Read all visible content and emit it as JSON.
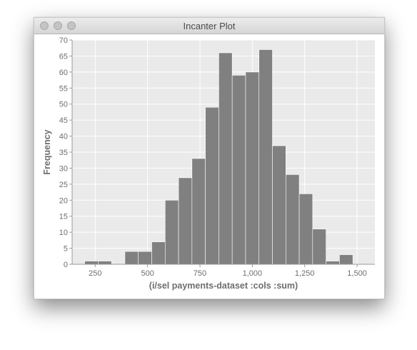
{
  "window": {
    "title": "Incanter Plot",
    "traffic_lights": [
      "close",
      "minimize",
      "zoom"
    ]
  },
  "colors": {
    "plot_background": "#eaeaea",
    "bar_fill": "#808080",
    "grid": "#ffffff",
    "text": "#6e6e6e"
  },
  "chart_data": {
    "type": "bar",
    "title": "",
    "xlabel": "(i/sel payments-dataset :cols :sum)",
    "ylabel": "Frequency",
    "xlim": [
      140,
      1585
    ],
    "ylim": [
      0,
      70
    ],
    "x_ticks": [
      250,
      500,
      750,
      1000,
      1250,
      1500
    ],
    "x_tick_labels": [
      "250",
      "500",
      "750",
      "1,000",
      "1,250",
      "1,500"
    ],
    "y_ticks": [
      0,
      5,
      10,
      15,
      20,
      25,
      30,
      35,
      40,
      45,
      50,
      55,
      60,
      65,
      70
    ],
    "y_tick_labels": [
      "0",
      "5",
      "10",
      "15",
      "20",
      "25",
      "30",
      "35",
      "40",
      "45",
      "50",
      "55",
      "60",
      "65",
      "70"
    ],
    "grid": true,
    "bins": [
      {
        "x0": 200,
        "x1": 264,
        "count": 1
      },
      {
        "x0": 264,
        "x1": 328,
        "count": 1
      },
      {
        "x0": 328,
        "x1": 392,
        "count": 0
      },
      {
        "x0": 392,
        "x1": 456,
        "count": 4
      },
      {
        "x0": 456,
        "x1": 520,
        "count": 4
      },
      {
        "x0": 520,
        "x1": 584,
        "count": 7
      },
      {
        "x0": 584,
        "x1": 648,
        "count": 20
      },
      {
        "x0": 648,
        "x1": 712,
        "count": 27
      },
      {
        "x0": 712,
        "x1": 776,
        "count": 33
      },
      {
        "x0": 776,
        "x1": 840,
        "count": 49
      },
      {
        "x0": 840,
        "x1": 904,
        "count": 66
      },
      {
        "x0": 904,
        "x1": 968,
        "count": 59
      },
      {
        "x0": 968,
        "x1": 1032,
        "count": 60
      },
      {
        "x0": 1032,
        "x1": 1096,
        "count": 67
      },
      {
        "x0": 1096,
        "x1": 1160,
        "count": 37
      },
      {
        "x0": 1160,
        "x1": 1224,
        "count": 28
      },
      {
        "x0": 1224,
        "x1": 1288,
        "count": 22
      },
      {
        "x0": 1288,
        "x1": 1352,
        "count": 11
      },
      {
        "x0": 1352,
        "x1": 1416,
        "count": 1
      },
      {
        "x0": 1416,
        "x1": 1480,
        "count": 3
      },
      {
        "x0": 1480,
        "x1": 1544,
        "count": 0
      }
    ]
  }
}
